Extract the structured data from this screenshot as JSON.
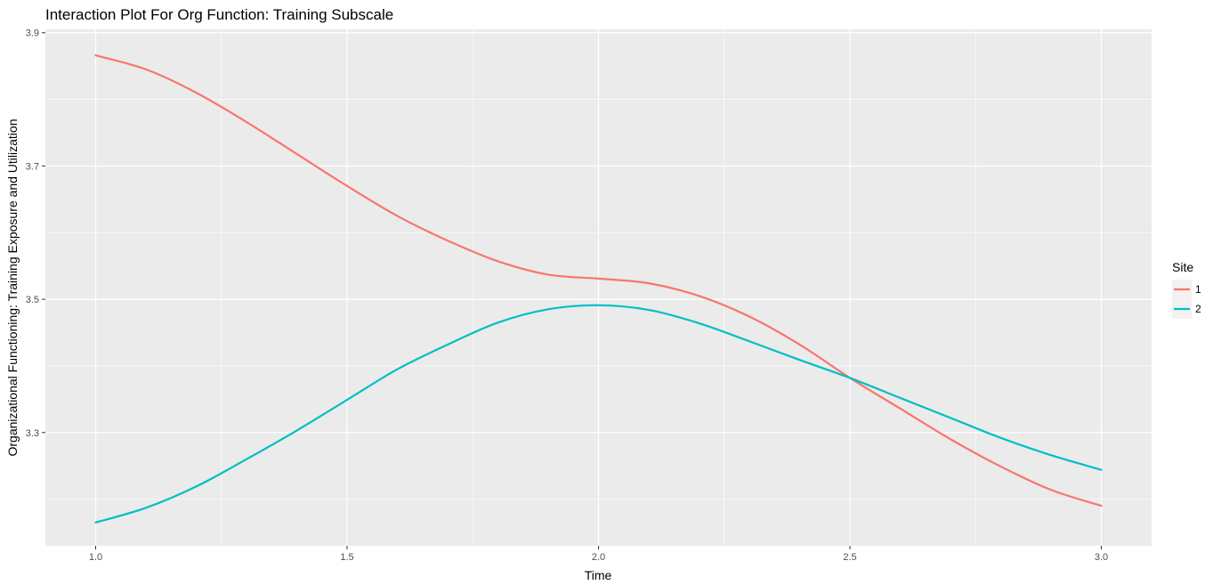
{
  "chart_data": {
    "type": "line",
    "title": "Interaction Plot For Org Function: Training Subscale",
    "xlabel": "Time",
    "ylabel": "Organizational Functioning: Training Exposure and Utilization",
    "xlim": [
      0.9,
      3.1
    ],
    "ylim": [
      3.13,
      3.905
    ],
    "x_ticks": [
      1.0,
      1.5,
      2.0,
      2.5,
      3.0
    ],
    "x_tick_labels": [
      "1.0",
      "1.5",
      "2.0",
      "2.5",
      "3.0"
    ],
    "y_ticks": [
      3.3,
      3.5,
      3.7,
      3.9
    ],
    "y_tick_labels": [
      "3.3",
      "3.5",
      "3.7",
      "3.9"
    ],
    "grid": true,
    "legend": {
      "title": "Site",
      "position": "right"
    },
    "x": [
      1.0,
      1.1,
      1.2,
      1.3,
      1.4,
      1.5,
      1.6,
      1.7,
      1.8,
      1.9,
      2.0,
      2.1,
      2.2,
      2.3,
      2.4,
      2.5,
      2.6,
      2.7,
      2.8,
      2.9,
      3.0
    ],
    "series": [
      {
        "name": "1",
        "color": "#f8766d",
        "values": [
          3.866,
          3.845,
          3.81,
          3.766,
          3.718,
          3.67,
          3.625,
          3.588,
          3.557,
          3.537,
          3.531,
          3.524,
          3.505,
          3.474,
          3.432,
          3.382,
          3.336,
          3.29,
          3.249,
          3.214,
          3.19
        ]
      },
      {
        "name": "2",
        "color": "#00bfc4",
        "values": [
          3.165,
          3.187,
          3.219,
          3.26,
          3.303,
          3.349,
          3.395,
          3.432,
          3.465,
          3.485,
          3.491,
          3.484,
          3.464,
          3.437,
          3.409,
          3.382,
          3.352,
          3.322,
          3.292,
          3.266,
          3.244
        ]
      }
    ]
  }
}
